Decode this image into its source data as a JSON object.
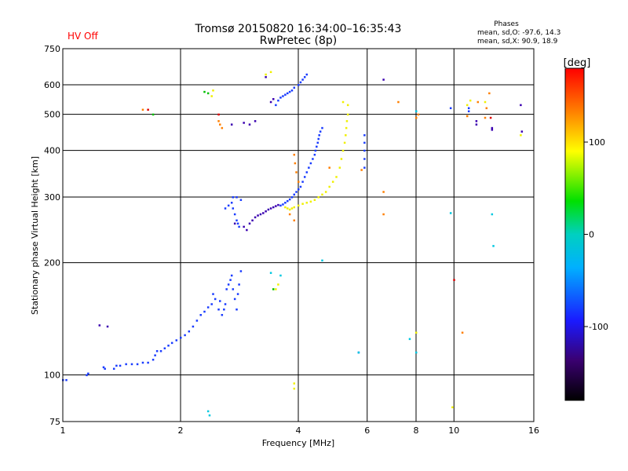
{
  "chart_data": {
    "type": "scatter",
    "title": "Tromsø 20150820 16:34:00–16:35:43",
    "subtitle": "RwPretec (8p)",
    "status": "HV Off",
    "status_color": "#ff0000",
    "stats": {
      "heading": "Phases",
      "line_o": "mean, sd,O: -97.6, 14.3",
      "line_x": "mean, sd,X:  90.9, 18.9"
    },
    "xlabel": "Frequency [MHz]",
    "ylabel": "Stationary phase Virtual Height [km]",
    "x_scale": "log",
    "y_scale": "log",
    "xlim": [
      1,
      16
    ],
    "ylim": [
      75,
      750
    ],
    "x_ticks": [
      1,
      2,
      4,
      6,
      8,
      10,
      16
    ],
    "x_tick_labels": [
      "1",
      "2",
      "4",
      "6",
      "8",
      "10",
      "16"
    ],
    "y_ticks": [
      75,
      100,
      200,
      300,
      400,
      500,
      600,
      750
    ],
    "y_tick_labels": [
      "75",
      "100",
      "200",
      "300",
      "400",
      "500",
      "600",
      "750"
    ],
    "grid": true,
    "colorbar": {
      "label": "[deg]",
      "range": [
        -180,
        180
      ],
      "ticks": [
        100,
        0,
        -100
      ],
      "tick_labels": [
        "100",
        "0",
        "-100"
      ]
    },
    "series": [
      {
        "mode": "O",
        "color": "#1a3cff",
        "points": [
          [
            1.0,
            97
          ],
          [
            1.02,
            97
          ],
          [
            1.15,
            100
          ],
          [
            1.16,
            101
          ],
          [
            1.27,
            105
          ],
          [
            1.28,
            104
          ],
          [
            1.35,
            104
          ],
          [
            1.37,
            106
          ],
          [
            1.4,
            106
          ],
          [
            1.45,
            107
          ],
          [
            1.5,
            107
          ],
          [
            1.55,
            107
          ],
          [
            1.6,
            108
          ],
          [
            1.65,
            108
          ],
          [
            1.7,
            110
          ],
          [
            1.72,
            113
          ],
          [
            1.74,
            116
          ],
          [
            1.78,
            116
          ],
          [
            1.82,
            118
          ],
          [
            1.86,
            120
          ],
          [
            1.9,
            122
          ],
          [
            1.95,
            124
          ],
          [
            2.0,
            126
          ],
          [
            2.05,
            128
          ],
          [
            2.1,
            131
          ],
          [
            2.15,
            135
          ],
          [
            2.2,
            140
          ],
          [
            2.25,
            145
          ],
          [
            2.3,
            148
          ],
          [
            2.35,
            152
          ],
          [
            2.4,
            155
          ],
          [
            2.42,
            165
          ],
          [
            2.45,
            160
          ],
          [
            2.5,
            150
          ],
          [
            2.52,
            158
          ],
          [
            2.55,
            145
          ],
          [
            2.58,
            150
          ],
          [
            2.6,
            155
          ],
          [
            2.62,
            170
          ],
          [
            2.65,
            175
          ],
          [
            2.68,
            180
          ],
          [
            2.7,
            185
          ],
          [
            2.72,
            170
          ],
          [
            2.75,
            160
          ],
          [
            2.78,
            150
          ],
          [
            2.8,
            165
          ],
          [
            2.82,
            175
          ],
          [
            2.85,
            190
          ],
          [
            2.6,
            280
          ],
          [
            2.65,
            285
          ],
          [
            2.7,
            290
          ],
          [
            2.72,
            280
          ],
          [
            2.75,
            270
          ],
          [
            2.78,
            260
          ],
          [
            2.8,
            255
          ],
          [
            2.82,
            250
          ],
          [
            2.85,
            295
          ],
          [
            2.72,
            300
          ],
          [
            2.78,
            300
          ],
          [
            3.5,
            530
          ],
          [
            3.55,
            545
          ],
          [
            3.6,
            555
          ],
          [
            3.65,
            560
          ],
          [
            3.7,
            565
          ],
          [
            3.75,
            570
          ],
          [
            3.8,
            575
          ],
          [
            3.85,
            580
          ],
          [
            3.9,
            590
          ],
          [
            4.0,
            600
          ],
          [
            4.05,
            610
          ],
          [
            4.1,
            620
          ],
          [
            4.15,
            630
          ],
          [
            4.2,
            640
          ],
          [
            3.6,
            285
          ],
          [
            3.65,
            287
          ],
          [
            3.7,
            290
          ],
          [
            3.75,
            293
          ],
          [
            3.8,
            296
          ],
          [
            3.85,
            300
          ],
          [
            3.9,
            305
          ],
          [
            3.95,
            310
          ],
          [
            4.0,
            315
          ],
          [
            4.05,
            320
          ],
          [
            4.1,
            330
          ],
          [
            4.15,
            340
          ],
          [
            4.2,
            350
          ],
          [
            4.25,
            360
          ],
          [
            4.3,
            370
          ],
          [
            4.35,
            380
          ],
          [
            4.4,
            390
          ],
          [
            4.42,
            400
          ],
          [
            4.45,
            410
          ],
          [
            4.48,
            420
          ],
          [
            4.5,
            430
          ],
          [
            4.52,
            440
          ],
          [
            4.55,
            450
          ],
          [
            4.6,
            460
          ],
          [
            5.9,
            420
          ],
          [
            5.9,
            440
          ],
          [
            5.9,
            400
          ],
          [
            5.9,
            380
          ],
          [
            5.9,
            360
          ],
          [
            5.7,
            115
          ],
          [
            10.9,
            520
          ],
          [
            10.9,
            510
          ],
          [
            8.0,
            510
          ],
          [
            9.8,
            520
          ]
        ]
      },
      {
        "mode": "O-low",
        "color": "#3a00b0",
        "points": [
          [
            1.24,
            136
          ],
          [
            1.3,
            135
          ],
          [
            2.75,
            255
          ],
          [
            2.9,
            250
          ],
          [
            2.95,
            245
          ],
          [
            3.0,
            255
          ],
          [
            3.05,
            260
          ],
          [
            3.1,
            265
          ],
          [
            3.15,
            268
          ],
          [
            3.2,
            270
          ],
          [
            3.25,
            272
          ],
          [
            3.3,
            275
          ],
          [
            3.35,
            278
          ],
          [
            3.4,
            280
          ],
          [
            3.45,
            282
          ],
          [
            3.5,
            284
          ],
          [
            3.55,
            286
          ],
          [
            3.4,
            540
          ],
          [
            3.45,
            550
          ],
          [
            3.3,
            630
          ],
          [
            3.1,
            480
          ],
          [
            3.0,
            470
          ],
          [
            2.9,
            475
          ],
          [
            2.7,
            470
          ],
          [
            6.6,
            620
          ],
          [
            12.5,
            455
          ],
          [
            12.5,
            460
          ],
          [
            11.4,
            480
          ],
          [
            11.4,
            470
          ],
          [
            14.8,
            530
          ],
          [
            14.9,
            450
          ]
        ]
      },
      {
        "mode": "X",
        "color": "#f0f000",
        "points": [
          [
            3.7,
            282
          ],
          [
            3.75,
            280
          ],
          [
            3.8,
            278
          ],
          [
            3.85,
            280
          ],
          [
            3.9,
            282
          ],
          [
            4.0,
            285
          ],
          [
            4.1,
            288
          ],
          [
            4.2,
            290
          ],
          [
            4.3,
            292
          ],
          [
            4.4,
            295
          ],
          [
            4.5,
            300
          ],
          [
            4.6,
            305
          ],
          [
            4.7,
            310
          ],
          [
            4.8,
            320
          ],
          [
            4.9,
            330
          ],
          [
            5.0,
            340
          ],
          [
            5.1,
            360
          ],
          [
            5.15,
            380
          ],
          [
            5.2,
            400
          ],
          [
            5.25,
            420
          ],
          [
            5.28,
            440
          ],
          [
            5.3,
            460
          ],
          [
            5.32,
            480
          ],
          [
            5.35,
            500
          ],
          [
            5.35,
            530
          ],
          [
            5.2,
            540
          ],
          [
            3.5,
            170
          ],
          [
            3.55,
            175
          ],
          [
            3.3,
            640
          ],
          [
            3.4,
            650
          ],
          [
            10.8,
            530
          ],
          [
            11.0,
            545
          ],
          [
            12.0,
            540
          ],
          [
            14.8,
            440
          ],
          [
            2.4,
            560
          ],
          [
            2.42,
            580
          ],
          [
            3.9,
            95
          ],
          [
            3.9,
            92
          ],
          [
            9.9,
            82
          ],
          [
            8.0,
            130
          ]
        ]
      },
      {
        "mode": "X-warm",
        "color": "#ff7f00",
        "points": [
          [
            1.6,
            515
          ],
          [
            2.5,
            480
          ],
          [
            2.52,
            470
          ],
          [
            2.55,
            460
          ],
          [
            3.9,
            390
          ],
          [
            3.92,
            370
          ],
          [
            3.95,
            350
          ],
          [
            4.0,
            330
          ],
          [
            4.8,
            360
          ],
          [
            5.8,
            355
          ],
          [
            6.6,
            310
          ],
          [
            6.6,
            270
          ],
          [
            7.2,
            540
          ],
          [
            8.0,
            490
          ],
          [
            8.1,
            500
          ],
          [
            10.8,
            495
          ],
          [
            11.5,
            540
          ],
          [
            12.3,
            570
          ],
          [
            12.1,
            520
          ],
          [
            12.0,
            490
          ],
          [
            10.5,
            130
          ],
          [
            3.9,
            260
          ],
          [
            3.8,
            270
          ]
        ]
      },
      {
        "mode": "mixed-green",
        "color": "#00c000",
        "points": [
          [
            1.7,
            500
          ],
          [
            2.3,
            575
          ],
          [
            3.45,
            170
          ],
          [
            2.35,
            570
          ]
        ]
      },
      {
        "mode": "outlier-red",
        "color": "#e00000",
        "points": [
          [
            10.0,
            180
          ],
          [
            1.65,
            515
          ],
          [
            12.4,
            490
          ],
          [
            2.5,
            500
          ]
        ]
      },
      {
        "mode": "outlier-cyan",
        "color": "#00c8e0",
        "points": [
          [
            2.35,
            80
          ],
          [
            2.37,
            78
          ],
          [
            9.8,
            272
          ],
          [
            12.5,
            270
          ],
          [
            12.6,
            222
          ],
          [
            8.0,
            510
          ],
          [
            5.7,
            115
          ],
          [
            7.7,
            125
          ],
          [
            8.0,
            115
          ],
          [
            3.4,
            188
          ],
          [
            3.6,
            185
          ],
          [
            4.6,
            203
          ]
        ]
      }
    ]
  }
}
